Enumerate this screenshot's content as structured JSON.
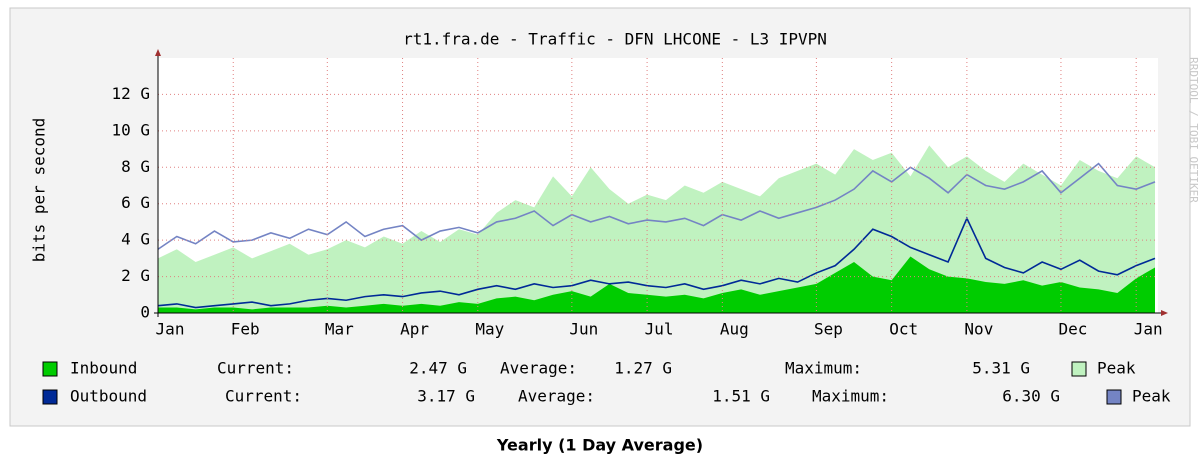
{
  "chart_data": {
    "type": "area",
    "title": "rt1.fra.de - Traffic - DFN LHCONE - L3 IPVPN",
    "ylabel": "bits per second",
    "caption": "Yearly (1 Day Average)",
    "watermark": "RRDTOOL / TOBI OETIKER",
    "categories": [
      "Jan",
      null,
      null,
      null,
      "Feb",
      null,
      null,
      null,
      null,
      "Mar",
      null,
      null,
      null,
      "Apr",
      null,
      null,
      null,
      "May",
      null,
      null,
      null,
      null,
      "Jun",
      null,
      null,
      null,
      "Jul",
      null,
      null,
      null,
      "Aug",
      null,
      null,
      null,
      null,
      "Sep",
      null,
      null,
      null,
      "Oct",
      null,
      null,
      null,
      "Nov",
      null,
      null,
      null,
      null,
      "Dec",
      null,
      null,
      null,
      "Jan",
      null
    ],
    "series": [
      {
        "name": "Peak",
        "color": "#c0f2c0",
        "style": "area",
        "values": [
          3.0,
          3.5,
          2.8,
          3.2,
          3.6,
          3.0,
          3.4,
          3.8,
          3.2,
          3.5,
          4.0,
          3.6,
          4.2,
          3.8,
          4.5,
          3.9,
          4.6,
          4.3,
          5.5,
          6.2,
          5.8,
          7.5,
          6.4,
          8.0,
          6.8,
          6.0,
          6.5,
          6.2,
          7.0,
          6.6,
          7.2,
          6.8,
          6.4,
          7.4,
          7.8,
          8.2,
          7.6,
          9.0,
          8.4,
          8.8,
          7.5,
          9.2,
          8.0,
          8.6,
          7.8,
          7.2,
          8.2,
          7.6,
          7.0,
          8.4,
          7.8,
          7.4,
          8.6,
          8.0
        ]
      },
      {
        "name": "Peak",
        "color": "#7484c4",
        "style": "line",
        "values": [
          3.5,
          4.2,
          3.8,
          4.5,
          3.9,
          4.0,
          4.4,
          4.1,
          4.6,
          4.3,
          5.0,
          4.2,
          4.6,
          4.8,
          4.0,
          4.5,
          4.7,
          4.4,
          5.0,
          5.2,
          5.6,
          4.8,
          5.4,
          5.0,
          5.3,
          4.9,
          5.1,
          5.0,
          5.2,
          4.8,
          5.4,
          5.1,
          5.6,
          5.2,
          5.5,
          5.8,
          6.2,
          6.8,
          7.8,
          7.2,
          8.0,
          7.4,
          6.6,
          7.6,
          7.0,
          6.8,
          7.2,
          7.8,
          6.6,
          7.4,
          8.2,
          7.0,
          6.8,
          7.2
        ]
      },
      {
        "name": "Inbound",
        "color": "#00cc00",
        "style": "area",
        "values": [
          0.3,
          0.3,
          0.2,
          0.3,
          0.3,
          0.2,
          0.3,
          0.3,
          0.3,
          0.4,
          0.3,
          0.4,
          0.5,
          0.4,
          0.5,
          0.4,
          0.6,
          0.5,
          0.8,
          0.9,
          0.7,
          1.0,
          1.2,
          0.9,
          1.6,
          1.1,
          1.0,
          0.9,
          1.0,
          0.8,
          1.1,
          1.3,
          1.0,
          1.2,
          1.4,
          1.6,
          2.2,
          2.8,
          2.0,
          1.8,
          3.1,
          2.4,
          2.0,
          1.9,
          1.7,
          1.6,
          1.8,
          1.5,
          1.7,
          1.4,
          1.3,
          1.1,
          1.9,
          2.5
        ],
        "current": {
          "value": 2.47,
          "label": "2.47 G"
        },
        "average": {
          "value": 1.27,
          "label": "1.27 G"
        },
        "maximum": {
          "value": 5.31,
          "label": "5.31 G"
        }
      },
      {
        "name": "Outbound",
        "color": "#002a97",
        "style": "line",
        "values": [
          0.4,
          0.5,
          0.3,
          0.4,
          0.5,
          0.6,
          0.4,
          0.5,
          0.7,
          0.8,
          0.7,
          0.9,
          1.0,
          0.9,
          1.1,
          1.2,
          1.0,
          1.3,
          1.5,
          1.3,
          1.6,
          1.4,
          1.5,
          1.8,
          1.6,
          1.7,
          1.5,
          1.4,
          1.6,
          1.3,
          1.5,
          1.8,
          1.6,
          1.9,
          1.7,
          2.2,
          2.6,
          3.5,
          4.6,
          4.2,
          3.6,
          3.2,
          2.8,
          5.2,
          3.0,
          2.5,
          2.2,
          2.8,
          2.4,
          2.9,
          2.3,
          2.1,
          2.6,
          3.0
        ],
        "current": {
          "value": 3.17,
          "label": "3.17 G"
        },
        "average": {
          "value": 1.51,
          "label": "1.51 G"
        },
        "maximum": {
          "value": 6.3,
          "label": "6.30 G"
        }
      }
    ],
    "stat_labels": {
      "current": "Current:",
      "average": "Average:",
      "maximum": "Maximum:"
    },
    "ylim": [
      0,
      14
    ],
    "yticks": [
      0,
      {
        "value": 2,
        "label": "2 G"
      },
      {
        "value": 4,
        "label": "4 G"
      },
      {
        "value": 6,
        "label": "6 G"
      },
      {
        "value": 8,
        "label": "8 G"
      },
      {
        "value": 10,
        "label": "10 G"
      },
      {
        "value": 12,
        "label": "12 G"
      }
    ],
    "grid": true
  }
}
